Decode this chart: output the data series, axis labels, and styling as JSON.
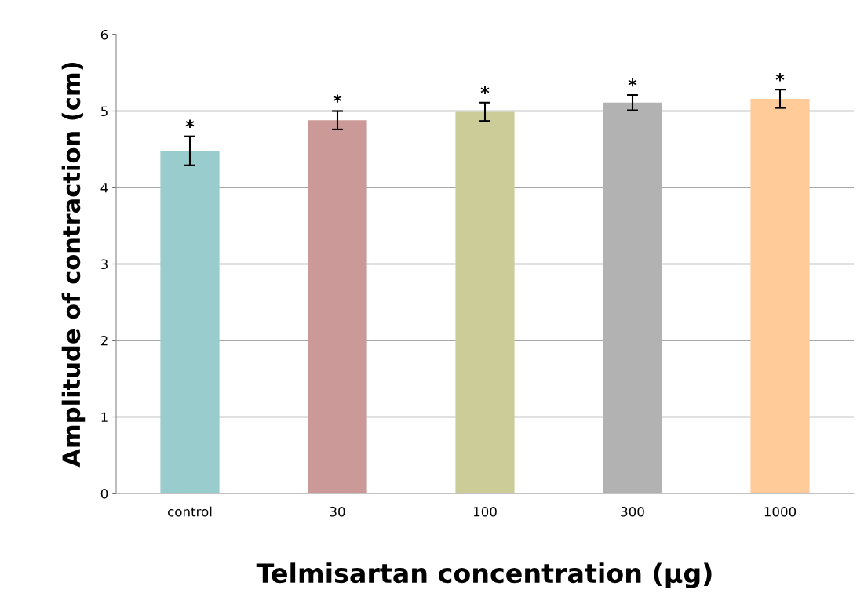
{
  "chart_data": {
    "type": "bar",
    "xlabel": "Telmisartan concentration (µg)",
    "ylabel": "Amplitude of contraction (cm)",
    "categories": [
      "control",
      "30",
      "100",
      "300",
      "1000"
    ],
    "values": [
      4.48,
      4.88,
      4.99,
      5.11,
      5.16
    ],
    "errors": [
      0.19,
      0.12,
      0.12,
      0.1,
      0.12
    ],
    "colors": [
      "#99cccc",
      "#cc9999",
      "#cccc99",
      "#b2b2b2",
      "#ffcc99"
    ],
    "ylim": [
      0,
      6
    ],
    "yticks": [
      0,
      1,
      2,
      3,
      4,
      5,
      6
    ],
    "grid": "y",
    "legend": false,
    "annotations": [
      {
        "text": "*",
        "x": "control",
        "y": 4.67
      },
      {
        "text": "*",
        "x": "30",
        "y": 5.0
      },
      {
        "text": "*",
        "x": "100",
        "y": 5.11
      },
      {
        "text": "*",
        "x": "300",
        "y": 5.21
      },
      {
        "text": "*",
        "x": "1000",
        "y": 5.28
      }
    ]
  }
}
